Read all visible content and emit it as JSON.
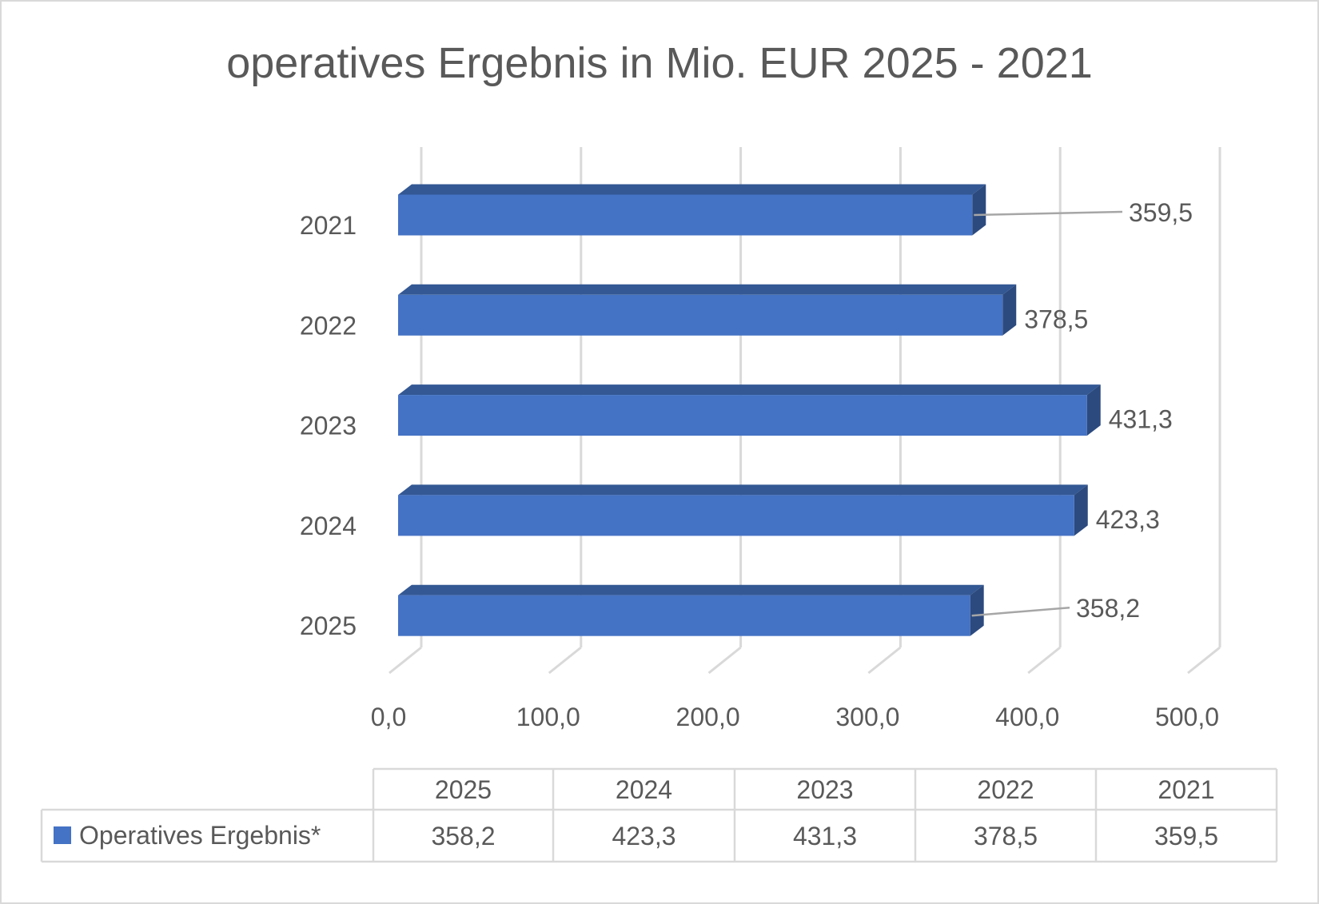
{
  "chart_data": {
    "type": "bar",
    "orientation": "horizontal",
    "style": "3d",
    "title": "operatives Ergebnis in Mio. EUR 2025 - 2021",
    "categories": [
      "2021",
      "2022",
      "2023",
      "2024",
      "2025"
    ],
    "series": [
      {
        "name": "Operatives Ergebnis*",
        "values": [
          359.5,
          378.5,
          431.3,
          423.3,
          358.2
        ],
        "labels": [
          "359,5",
          "378,5",
          "431,3",
          "423,3",
          "358,2"
        ],
        "color": "#4472C4"
      }
    ],
    "xlim": [
      0,
      500
    ],
    "x_ticks": [
      0,
      100,
      200,
      300,
      400,
      500
    ],
    "x_tick_labels": [
      "0,0",
      "100,0",
      "200,0",
      "300,0",
      "400,0",
      "500,0"
    ],
    "grid": true,
    "legend": "data-table",
    "data_table": {
      "columns": [
        "2025",
        "2024",
        "2023",
        "2022",
        "2021"
      ],
      "row_label": "Operatives Ergebnis*",
      "values": [
        "358,2",
        "423,3",
        "431,3",
        "378,5",
        "359,5"
      ]
    }
  }
}
